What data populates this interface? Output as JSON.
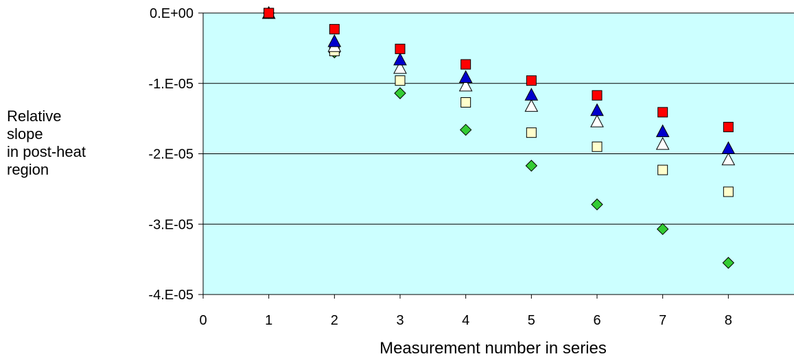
{
  "chart_data": {
    "type": "scatter",
    "title": "",
    "xlabel": "Measurement number in series",
    "ylabel_lines": [
      "Relative",
      "slope",
      "in post-heat",
      "region"
    ],
    "xlim": [
      0,
      9
    ],
    "ylim": [
      -4e-05,
      0
    ],
    "x_ticks": [
      {
        "value": 0,
        "label": "0"
      },
      {
        "value": 1,
        "label": "1"
      },
      {
        "value": 2,
        "label": "2"
      },
      {
        "value": 3,
        "label": "3"
      },
      {
        "value": 4,
        "label": "4"
      },
      {
        "value": 5,
        "label": "5"
      },
      {
        "value": 6,
        "label": "6"
      },
      {
        "value": 7,
        "label": "7"
      },
      {
        "value": 8,
        "label": "8"
      }
    ],
    "y_ticks": [
      {
        "value": 0,
        "label": "0.E+00"
      },
      {
        "value": -1e-05,
        "label": "-1.E-05"
      },
      {
        "value": -2e-05,
        "label": "-2.E-05"
      },
      {
        "value": -3e-05,
        "label": "-3.E-05"
      },
      {
        "value": -4e-05,
        "label": "-4.E-05"
      }
    ],
    "grid": "horizontal",
    "background_color": "#ccffff",
    "series": [
      {
        "marker": "diamond",
        "color": "#33cc33",
        "points": [
          [
            1,
            0
          ],
          [
            2,
            -5.6e-06
          ],
          [
            3,
            -1.14e-05
          ],
          [
            4,
            -1.66e-05
          ],
          [
            5,
            -2.17e-05
          ],
          [
            6,
            -2.72e-05
          ],
          [
            7,
            -3.07e-05
          ],
          [
            8,
            -3.55e-05
          ]
        ]
      },
      {
        "marker": "square",
        "color": "#ffffcc",
        "points": [
          [
            1,
            0
          ],
          [
            2,
            -5.4e-06
          ],
          [
            3,
            -9.6e-06
          ],
          [
            4,
            -1.27e-05
          ],
          [
            5,
            -1.7e-05
          ],
          [
            6,
            -1.9e-05
          ],
          [
            7,
            -2.23e-05
          ],
          [
            8,
            -2.54e-05
          ]
        ]
      },
      {
        "marker": "triangle",
        "color": "#ffffff",
        "points": [
          [
            1,
            0
          ],
          [
            2,
            -4.7e-06
          ],
          [
            3,
            -7.8e-06
          ],
          [
            4,
            -1.03e-05
          ],
          [
            5,
            -1.32e-05
          ],
          [
            6,
            -1.54e-05
          ],
          [
            7,
            -1.86e-05
          ],
          [
            8,
            -2.08e-05
          ]
        ]
      },
      {
        "marker": "triangle",
        "color": "#0000cc",
        "points": [
          [
            1,
            0
          ],
          [
            2,
            -4e-06
          ],
          [
            3,
            -6.6e-06
          ],
          [
            4,
            -9.1e-06
          ],
          [
            5,
            -1.16e-05
          ],
          [
            6,
            -1.38e-05
          ],
          [
            7,
            -1.68e-05
          ],
          [
            8,
            -1.92e-05
          ]
        ]
      },
      {
        "marker": "square",
        "color": "#ff0000",
        "points": [
          [
            1,
            0
          ],
          [
            2,
            -2.3e-06
          ],
          [
            3,
            -5.1e-06
          ],
          [
            4,
            -7.3e-06
          ],
          [
            5,
            -9.6e-06
          ],
          [
            6,
            -1.17e-05
          ],
          [
            7,
            -1.41e-05
          ],
          [
            8,
            -1.62e-05
          ]
        ]
      }
    ]
  }
}
